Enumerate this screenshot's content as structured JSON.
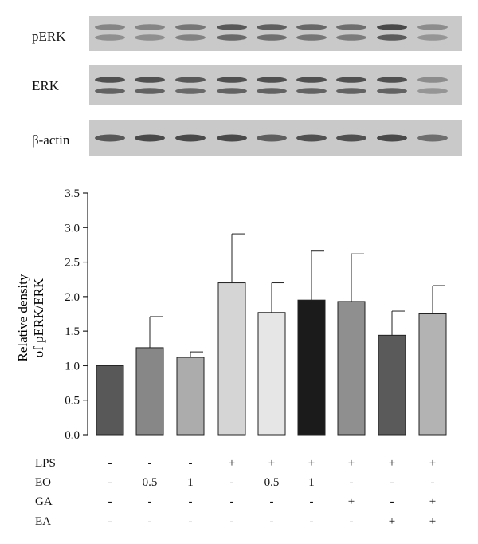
{
  "blots": [
    {
      "label": "pERK",
      "lanes": [
        0.45,
        0.45,
        0.55,
        0.75,
        0.7,
        0.65,
        0.6,
        0.85,
        0.4
      ]
    },
    {
      "label": "ERK",
      "lanes": [
        0.8,
        0.8,
        0.75,
        0.8,
        0.8,
        0.8,
        0.8,
        0.8,
        0.4
      ]
    },
    {
      "label": "β-actin",
      "lanes": [
        0.75,
        0.85,
        0.85,
        0.85,
        0.7,
        0.8,
        0.8,
        0.85,
        0.6
      ]
    }
  ],
  "chart_data": {
    "type": "bar",
    "ylabel": [
      "Relative density",
      "of pERK/ERK"
    ],
    "ylim": [
      0,
      3.5
    ],
    "yticks": [
      "0.0",
      "0.5",
      "1.0",
      "1.5",
      "2.0",
      "2.5",
      "3.0",
      "3.5"
    ],
    "values": [
      1.0,
      1.26,
      1.12,
      2.2,
      1.77,
      1.95,
      1.93,
      1.44,
      1.75
    ],
    "errors": [
      0.0,
      0.45,
      0.08,
      0.71,
      0.43,
      0.71,
      0.69,
      0.35,
      0.41
    ],
    "colors": [
      "#585858",
      "#878787",
      "#acacac",
      "#d5d5d5",
      "#e6e6e6",
      "#1b1b1b",
      "#8f8f8f",
      "#5a5a5a",
      "#b3b3b3"
    ]
  },
  "conditions": [
    {
      "label": "LPS",
      "values": [
        "-",
        "-",
        "-",
        "+",
        "+",
        "+",
        "+",
        "+",
        "+"
      ]
    },
    {
      "label": "EO",
      "values": [
        "-",
        "0.5",
        "1",
        "-",
        "0.5",
        "1",
        "-",
        "-",
        "-"
      ]
    },
    {
      "label": "GA",
      "values": [
        "-",
        "-",
        "-",
        "-",
        "-",
        "-",
        "+",
        "-",
        "+"
      ]
    },
    {
      "label": "EA",
      "values": [
        "-",
        "-",
        "-",
        "-",
        "-",
        "-",
        "-",
        "+",
        "+"
      ]
    }
  ]
}
